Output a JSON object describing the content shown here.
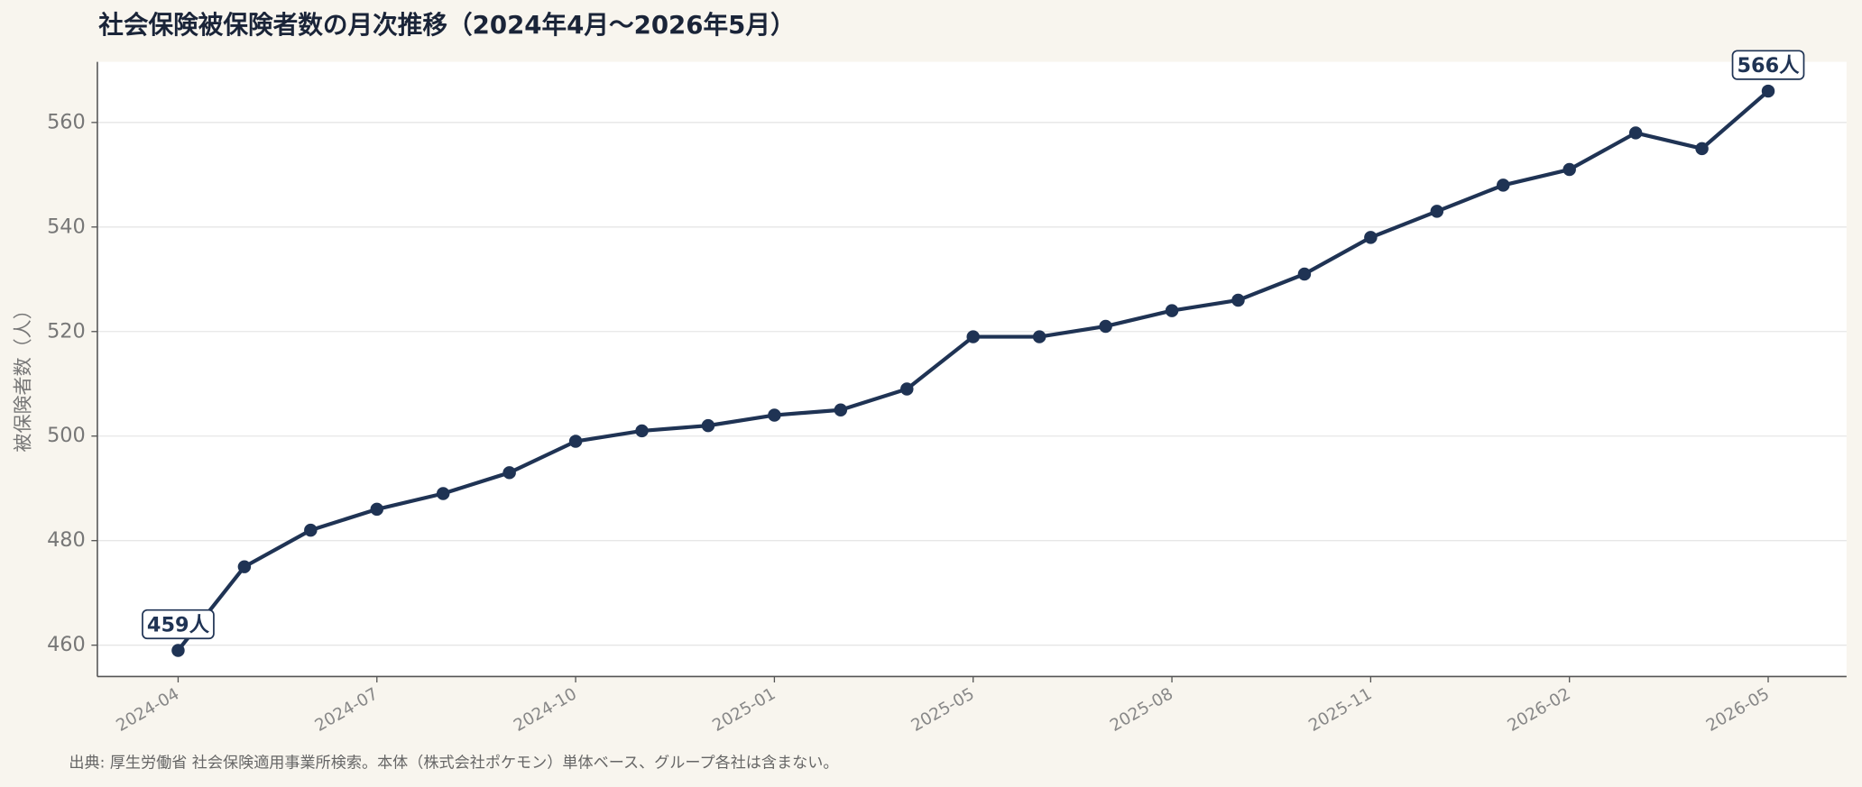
{
  "chart_data": {
    "type": "line",
    "title": "社会保険被保険者数の月次推移（2024年4月〜2026年5月）",
    "ylabel": "被保険者数（人）",
    "note": "出典: 厚生労働省 社会保険適用事業所検索。本体（株式会社ポケモン）単体ベース、グループ各社は含まない。",
    "categories": [
      "2024-04",
      null,
      null,
      "2024-07",
      null,
      null,
      "2024-10",
      null,
      null,
      "2025-01",
      null,
      null,
      "2025-05",
      null,
      null,
      "2025-08",
      null,
      null,
      "2025-11",
      null,
      null,
      "2026-02",
      null,
      null,
      "2026-05"
    ],
    "series": [
      {
        "name": "被保険者数",
        "color": "#1f3354",
        "values": [
          459,
          475,
          482,
          486,
          489,
          493,
          499,
          501,
          502,
          504,
          505,
          509,
          519,
          519,
          521,
          524,
          526,
          531,
          538,
          543,
          548,
          551,
          558,
          555,
          566
        ],
        "value_labels": [
          "459人",
          null,
          null,
          null,
          null,
          null,
          null,
          null,
          null,
          null,
          null,
          null,
          null,
          null,
          null,
          null,
          null,
          null,
          null,
          null,
          null,
          null,
          null,
          null,
          "566人"
        ]
      }
    ],
    "ylim": [
      454,
      571.6
    ],
    "yticks": [
      460,
      480,
      500,
      520,
      540,
      560
    ],
    "grid": true
  }
}
